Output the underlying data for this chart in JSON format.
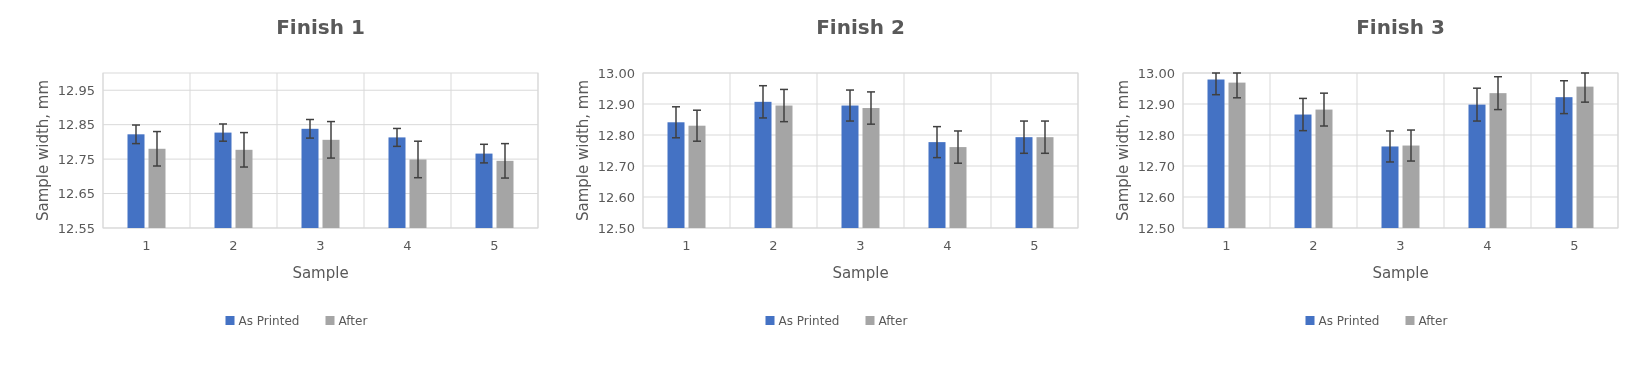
{
  "chart_data": [
    {
      "type": "bar",
      "title": "Finish 1",
      "xlabel": "Sample",
      "ylabel": "Sample width, mm",
      "categories": [
        "1",
        "2",
        "3",
        "4",
        "5"
      ],
      "ylim": [
        12.55,
        13.0
      ],
      "yticks": [
        12.55,
        12.65,
        12.75,
        12.85,
        12.95
      ],
      "grid": true,
      "legend": "bottom",
      "series": [
        {
          "name": "As Printed",
          "color": "#4472c4",
          "values": [
            12.822,
            12.827,
            12.838,
            12.813,
            12.766
          ],
          "errors": [
            0.027,
            0.025,
            0.027,
            0.026,
            0.027
          ]
        },
        {
          "name": "After",
          "color": "#a5a5a5",
          "values": [
            12.78,
            12.777,
            12.806,
            12.749,
            12.745
          ],
          "errors": [
            0.05,
            0.05,
            0.053,
            0.053,
            0.05
          ]
        }
      ]
    },
    {
      "type": "bar",
      "title": "Finish 2",
      "xlabel": "Sample",
      "ylabel": "Sample width, mm",
      "categories": [
        "1",
        "2",
        "3",
        "4",
        "5"
      ],
      "ylim": [
        12.5,
        13.0
      ],
      "yticks": [
        {
          "value": 12.5,
          "label": "12.50"
        },
        {
          "value": 12.6,
          "label": "12.60"
        },
        {
          "value": 12.7,
          "label": "12.70"
        },
        {
          "value": 12.8,
          "label": "12.80"
        },
        {
          "value": 12.9,
          "label": "12.90"
        },
        {
          "value": 13.0,
          "label": "13.00"
        }
      ],
      "grid": true,
      "legend": "bottom",
      "series": [
        {
          "name": "As Printed",
          "color": "#4472c4",
          "values": [
            12.841,
            12.907,
            12.895,
            12.777,
            12.793
          ],
          "errors": [
            0.05,
            0.052,
            0.05,
            0.05,
            0.052
          ]
        },
        {
          "name": "After",
          "color": "#a5a5a5",
          "values": [
            12.83,
            12.895,
            12.887,
            12.761,
            12.793
          ],
          "errors": [
            0.05,
            0.052,
            0.052,
            0.052,
            0.052
          ]
        }
      ]
    },
    {
      "type": "bar",
      "title": "Finish 3",
      "xlabel": "Sample",
      "ylabel": "Sample width, mm",
      "categories": [
        "1",
        "2",
        "3",
        "4",
        "5"
      ],
      "ylim": [
        12.5,
        13.0
      ],
      "yticks": [
        {
          "value": 12.5,
          "label": "12.50"
        },
        {
          "value": 12.6,
          "label": "12.60"
        },
        {
          "value": 12.7,
          "label": "12.70"
        },
        {
          "value": 12.8,
          "label": "12.80"
        },
        {
          "value": 12.9,
          "label": "12.90"
        },
        {
          "value": 13.0,
          "label": "13.00"
        }
      ],
      "grid": true,
      "legend": "bottom",
      "series": [
        {
          "name": "As Printed",
          "color": "#4472c4",
          "values": [
            12.979,
            12.866,
            12.763,
            12.898,
            12.922
          ],
          "errors": [
            [
              12.93,
              13.0
            ],
            0.052,
            0.05,
            0.053,
            0.053
          ]
        },
        {
          "name": "After",
          "color": "#a5a5a5",
          "values": [
            12.969,
            12.882,
            12.766,
            12.935,
            12.956
          ],
          "errors": [
            [
              12.92,
              13.0
            ],
            0.053,
            0.05,
            0.053,
            [
              12.906,
              13.0
            ]
          ]
        }
      ]
    }
  ]
}
